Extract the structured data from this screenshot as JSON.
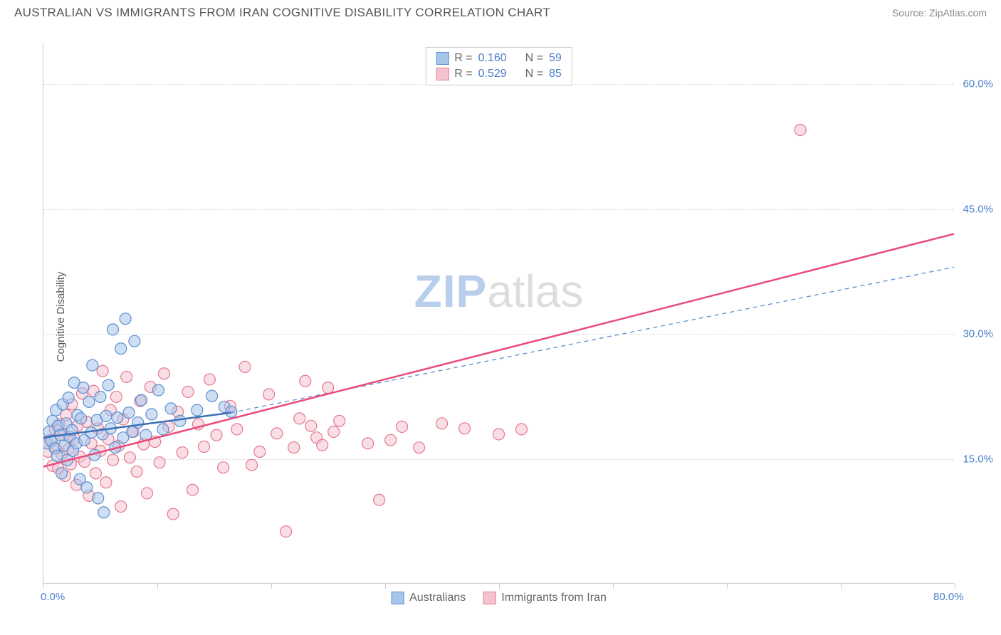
{
  "header": {
    "title": "AUSTRALIAN VS IMMIGRANTS FROM IRAN COGNITIVE DISABILITY CORRELATION CHART",
    "source": "Source: ZipAtlas.com"
  },
  "chart": {
    "type": "scatter",
    "y_axis_label": "Cognitive Disability",
    "watermark_zip": "ZIP",
    "watermark_atlas": "atlas",
    "xlim": [
      0,
      80
    ],
    "ylim": [
      0,
      65
    ],
    "x_ticks": [
      0,
      10,
      20,
      30,
      40,
      50,
      60,
      70,
      80
    ],
    "x_tick_labels": {
      "0": "0.0%",
      "80": "80.0%"
    },
    "y_gridlines": [
      15,
      30,
      45,
      60
    ],
    "y_tick_labels": {
      "15": "15.0%",
      "30": "30.0%",
      "45": "45.0%",
      "60": "60.0%"
    },
    "background_color": "#ffffff",
    "grid_color": "#dddddd",
    "axis_color": "#cccccc",
    "tick_label_color": "#4a7ec9",
    "marker_radius": 8,
    "marker_opacity": 0.55,
    "series": [
      {
        "name": "Australians",
        "fill_color": "#a8c5ea",
        "stroke_color": "#5b8fd0",
        "trend_solid": {
          "x1": 0,
          "y1": 17.5,
          "x2": 16.5,
          "y2": 20.5,
          "width": 2.5,
          "color": "#3a6fb5"
        },
        "trend_dashed": {
          "x1": 16.5,
          "y1": 20.5,
          "x2": 80,
          "y2": 38.0,
          "width": 1.3,
          "color": "#5b8fd0",
          "dash": "6,5"
        },
        "legend_top": {
          "r_label": "R =",
          "r_value": "0.160",
          "n_label": "N =",
          "n_value": "59"
        },
        "legend_bottom_label": "Australians",
        "points": [
          [
            0.3,
            16.8
          ],
          [
            0.5,
            18.2
          ],
          [
            0.7,
            17.1
          ],
          [
            0.8,
            19.5
          ],
          [
            1.0,
            16.2
          ],
          [
            1.1,
            20.8
          ],
          [
            1.2,
            15.3
          ],
          [
            1.3,
            18.9
          ],
          [
            1.5,
            17.8
          ],
          [
            1.6,
            13.2
          ],
          [
            1.7,
            21.5
          ],
          [
            1.8,
            16.5
          ],
          [
            2.0,
            19.2
          ],
          [
            2.1,
            14.8
          ],
          [
            2.2,
            22.3
          ],
          [
            2.3,
            17.6
          ],
          [
            2.5,
            18.4
          ],
          [
            2.6,
            15.9
          ],
          [
            2.7,
            24.1
          ],
          [
            2.9,
            16.8
          ],
          [
            3.0,
            20.2
          ],
          [
            3.2,
            12.5
          ],
          [
            3.3,
            19.8
          ],
          [
            3.5,
            23.5
          ],
          [
            3.6,
            17.2
          ],
          [
            3.8,
            11.5
          ],
          [
            4.0,
            21.8
          ],
          [
            4.2,
            18.1
          ],
          [
            4.3,
            26.2
          ],
          [
            4.5,
            15.4
          ],
          [
            4.7,
            19.6
          ],
          [
            4.8,
            10.2
          ],
          [
            5.0,
            22.4
          ],
          [
            5.2,
            17.9
          ],
          [
            5.3,
            8.5
          ],
          [
            5.5,
            20.1
          ],
          [
            5.7,
            23.8
          ],
          [
            5.9,
            18.6
          ],
          [
            6.1,
            30.5
          ],
          [
            6.3,
            16.3
          ],
          [
            6.5,
            19.9
          ],
          [
            6.8,
            28.2
          ],
          [
            7.0,
            17.5
          ],
          [
            7.2,
            31.8
          ],
          [
            7.5,
            20.5
          ],
          [
            7.8,
            18.2
          ],
          [
            8.0,
            29.1
          ],
          [
            8.3,
            19.3
          ],
          [
            8.6,
            22.0
          ],
          [
            9.0,
            17.8
          ],
          [
            9.5,
            20.3
          ],
          [
            10.1,
            23.2
          ],
          [
            10.5,
            18.5
          ],
          [
            11.2,
            21.0
          ],
          [
            12.0,
            19.5
          ],
          [
            13.5,
            20.8
          ],
          [
            14.8,
            22.5
          ],
          [
            15.9,
            21.2
          ],
          [
            16.5,
            20.6
          ]
        ]
      },
      {
        "name": "Immigrants from Iran",
        "fill_color": "#f5c2d0",
        "stroke_color": "#e5788f",
        "trend_solid": {
          "x1": 0,
          "y1": 14.0,
          "x2": 80,
          "y2": 42.0,
          "width": 2.5,
          "color": "#e94b7a"
        },
        "trend_dashed": null,
        "legend_top": {
          "r_label": "R =",
          "r_value": "0.529",
          "n_label": "N =",
          "n_value": "85"
        },
        "legend_bottom_label": "Immigrants from Iran",
        "points": [
          [
            0.4,
            15.8
          ],
          [
            0.6,
            17.2
          ],
          [
            0.8,
            14.1
          ],
          [
            1.0,
            18.5
          ],
          [
            1.1,
            16.2
          ],
          [
            1.3,
            13.8
          ],
          [
            1.4,
            19.1
          ],
          [
            1.6,
            15.5
          ],
          [
            1.8,
            17.8
          ],
          [
            1.9,
            12.9
          ],
          [
            2.0,
            20.2
          ],
          [
            2.2,
            16.1
          ],
          [
            2.4,
            14.3
          ],
          [
            2.5,
            21.5
          ],
          [
            2.7,
            17.4
          ],
          [
            2.9,
            11.8
          ],
          [
            3.0,
            18.9
          ],
          [
            3.2,
            15.2
          ],
          [
            3.4,
            22.8
          ],
          [
            3.6,
            14.6
          ],
          [
            3.8,
            19.4
          ],
          [
            4.0,
            10.5
          ],
          [
            4.2,
            16.8
          ],
          [
            4.4,
            23.1
          ],
          [
            4.6,
            13.2
          ],
          [
            4.8,
            18.6
          ],
          [
            5.0,
            15.9
          ],
          [
            5.2,
            25.5
          ],
          [
            5.5,
            12.1
          ],
          [
            5.7,
            17.3
          ],
          [
            5.9,
            20.8
          ],
          [
            6.1,
            14.8
          ],
          [
            6.4,
            22.4
          ],
          [
            6.6,
            16.5
          ],
          [
            6.8,
            9.2
          ],
          [
            7.0,
            19.7
          ],
          [
            7.3,
            24.8
          ],
          [
            7.6,
            15.1
          ],
          [
            7.9,
            18.2
          ],
          [
            8.2,
            13.4
          ],
          [
            8.5,
            21.9
          ],
          [
            8.8,
            16.7
          ],
          [
            9.1,
            10.8
          ],
          [
            9.4,
            23.6
          ],
          [
            9.8,
            17.0
          ],
          [
            10.2,
            14.5
          ],
          [
            10.6,
            25.2
          ],
          [
            11.0,
            18.8
          ],
          [
            11.4,
            8.3
          ],
          [
            11.8,
            20.6
          ],
          [
            12.2,
            15.7
          ],
          [
            12.7,
            23.0
          ],
          [
            13.1,
            11.2
          ],
          [
            13.6,
            19.1
          ],
          [
            14.1,
            16.4
          ],
          [
            14.6,
            24.5
          ],
          [
            15.2,
            17.8
          ],
          [
            15.8,
            13.9
          ],
          [
            16.4,
            21.3
          ],
          [
            17.0,
            18.5
          ],
          [
            17.7,
            26.0
          ],
          [
            18.3,
            14.2
          ],
          [
            19.0,
            15.8
          ],
          [
            19.8,
            22.7
          ],
          [
            20.5,
            18.0
          ],
          [
            21.3,
            6.2
          ],
          [
            22.0,
            16.3
          ],
          [
            22.5,
            19.8
          ],
          [
            23.0,
            24.3
          ],
          [
            23.5,
            18.9
          ],
          [
            24.0,
            17.5
          ],
          [
            24.5,
            16.6
          ],
          [
            25.0,
            23.5
          ],
          [
            25.5,
            18.2
          ],
          [
            26.0,
            19.5
          ],
          [
            28.5,
            16.8
          ],
          [
            29.5,
            10.0
          ],
          [
            30.5,
            17.2
          ],
          [
            31.5,
            18.8
          ],
          [
            33.0,
            16.3
          ],
          [
            35.0,
            19.2
          ],
          [
            37.0,
            18.6
          ],
          [
            40.0,
            17.9
          ],
          [
            42.0,
            18.5
          ],
          [
            66.5,
            54.5
          ]
        ]
      }
    ]
  }
}
